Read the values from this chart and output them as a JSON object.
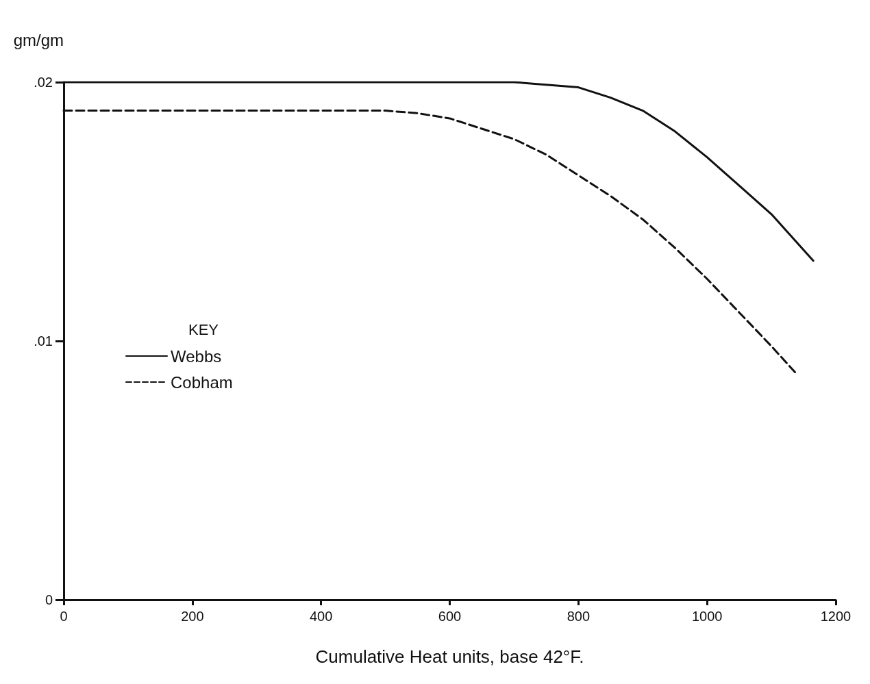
{
  "chart_data": {
    "type": "line",
    "xlabel": "Cumulative Heat units, base 42°F.",
    "ylabel": "gm/gm",
    "legend_title": "KEY",
    "xlim": [
      0,
      1200
    ],
    "xticks": [
      0,
      200,
      400,
      600,
      800,
      1000,
      1200
    ],
    "ylim": [
      0,
      0.02
    ],
    "yticks": [
      {
        "value": 0,
        "label": "0"
      },
      {
        "value": 0.01,
        "label": ".01"
      },
      {
        "value": 0.02,
        "label": ".02"
      }
    ],
    "grid": false,
    "legend": "left",
    "marker": "none",
    "series": [
      {
        "name": "Webbs",
        "color": "#111111",
        "line_style": "solid",
        "x": [
          0,
          200,
          400,
          600,
          700,
          800,
          850,
          900,
          950,
          1000,
          1050,
          1100,
          1165
        ],
        "values": [
          0.02,
          0.02,
          0.02,
          0.02,
          0.02,
          0.0198,
          0.0194,
          0.0189,
          0.0181,
          0.0171,
          0.016,
          0.0149,
          0.0131
        ]
      },
      {
        "name": "Cobham",
        "color": "#111111",
        "line_style": "dashed",
        "x": [
          0,
          200,
          400,
          500,
          550,
          600,
          650,
          700,
          750,
          800,
          850,
          900,
          950,
          1000,
          1050,
          1100,
          1140
        ],
        "values": [
          0.0189,
          0.0189,
          0.0189,
          0.0189,
          0.0188,
          0.0186,
          0.0182,
          0.0178,
          0.0172,
          0.0164,
          0.0156,
          0.0147,
          0.0136,
          0.0124,
          0.0111,
          0.0098,
          0.0087
        ]
      }
    ]
  }
}
